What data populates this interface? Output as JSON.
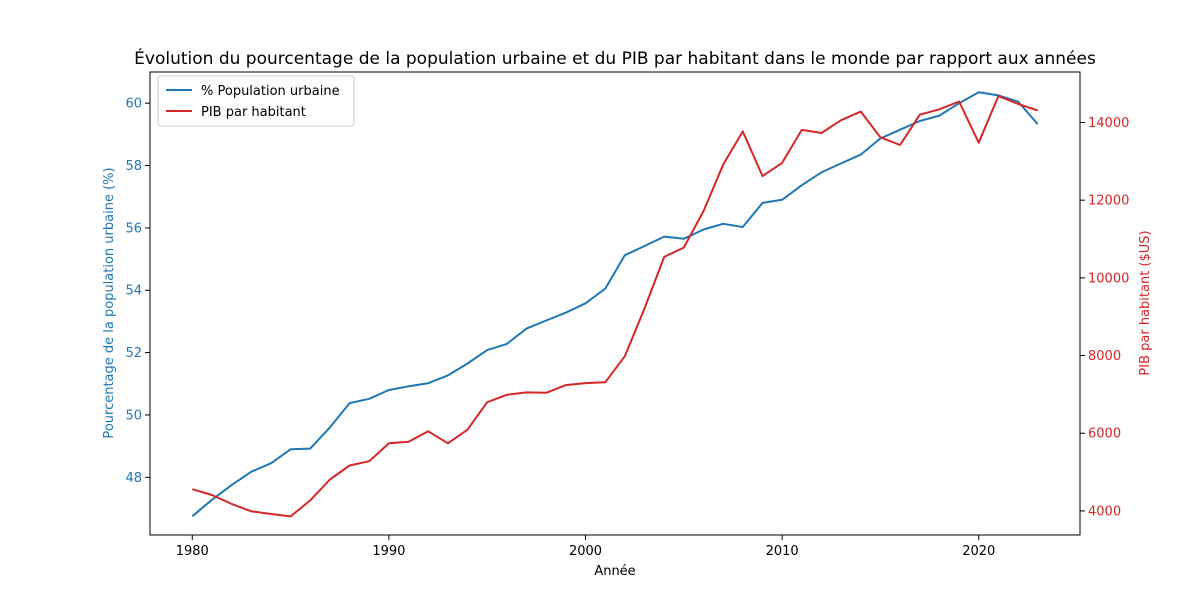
{
  "chart_data": {
    "type": "line",
    "title": "Évolution du pourcentage de la population urbaine et du PIB par habitant dans le monde par rapport aux années",
    "xlabel": "Année",
    "ylabel_left": "Pourcentage de la population urbaine (%)",
    "ylabel_right": "PIB par habitant ($US)",
    "xlim": [
      1977.85,
      1981.15
    ],
    "xlim_full": [
      1977.85,
      2025.15
    ],
    "ylim_left": [
      46.15,
      61.0
    ],
    "ylim_right": [
      3380,
      15300
    ],
    "x_ticks": [
      1980,
      1990,
      2000,
      2010,
      2020
    ],
    "y_left_ticks": [
      48,
      50,
      52,
      54,
      56,
      58,
      60
    ],
    "y_right_ticks": [
      4000,
      6000,
      8000,
      10000,
      12000,
      14000
    ],
    "legend_position": "top-left",
    "x": [
      1980,
      1981,
      1982,
      1983,
      1984,
      1985,
      1986,
      1987,
      1988,
      1989,
      1990,
      1991,
      1992,
      1993,
      1994,
      1995,
      1996,
      1997,
      1998,
      1999,
      2000,
      2001,
      2002,
      2003,
      2004,
      2005,
      2006,
      2007,
      2008,
      2009,
      2010,
      2011,
      2012,
      2013,
      2014,
      2015,
      2016,
      2017,
      2018,
      2019,
      2020,
      2021,
      2022,
      2023
    ],
    "series": [
      {
        "name": "% Population urbaine",
        "axis": "left",
        "color": "#1f77b4",
        "values": [
          46.75,
          47.28,
          47.75,
          48.18,
          48.45,
          48.9,
          48.92,
          49.6,
          50.38,
          50.52,
          50.8,
          50.92,
          51.02,
          51.27,
          51.65,
          52.08,
          52.28,
          52.77,
          53.03,
          53.28,
          53.58,
          54.05,
          55.12,
          55.42,
          55.72,
          55.65,
          55.95,
          56.13,
          56.03,
          56.8,
          56.9,
          57.37,
          57.78,
          58.07,
          58.35,
          58.87,
          59.15,
          59.43,
          59.6,
          60.0,
          60.35,
          60.25,
          60.05,
          59.33
        ]
      },
      {
        "name": "PIB par habitant",
        "axis": "right",
        "color": "#d62728",
        "values": [
          4560,
          4410,
          4180,
          3990,
          3920,
          3860,
          4270,
          4810,
          5170,
          5280,
          5740,
          5780,
          6050,
          5740,
          6090,
          6800,
          6990,
          7050,
          7040,
          7240,
          7290,
          7310,
          7980,
          9210,
          10540,
          10780,
          11720,
          12910,
          13770,
          12620,
          12960,
          13810,
          13730,
          14060,
          14280,
          13620,
          13420,
          14200,
          14340,
          14540,
          13480,
          14680,
          14480,
          14310
        ]
      }
    ]
  }
}
